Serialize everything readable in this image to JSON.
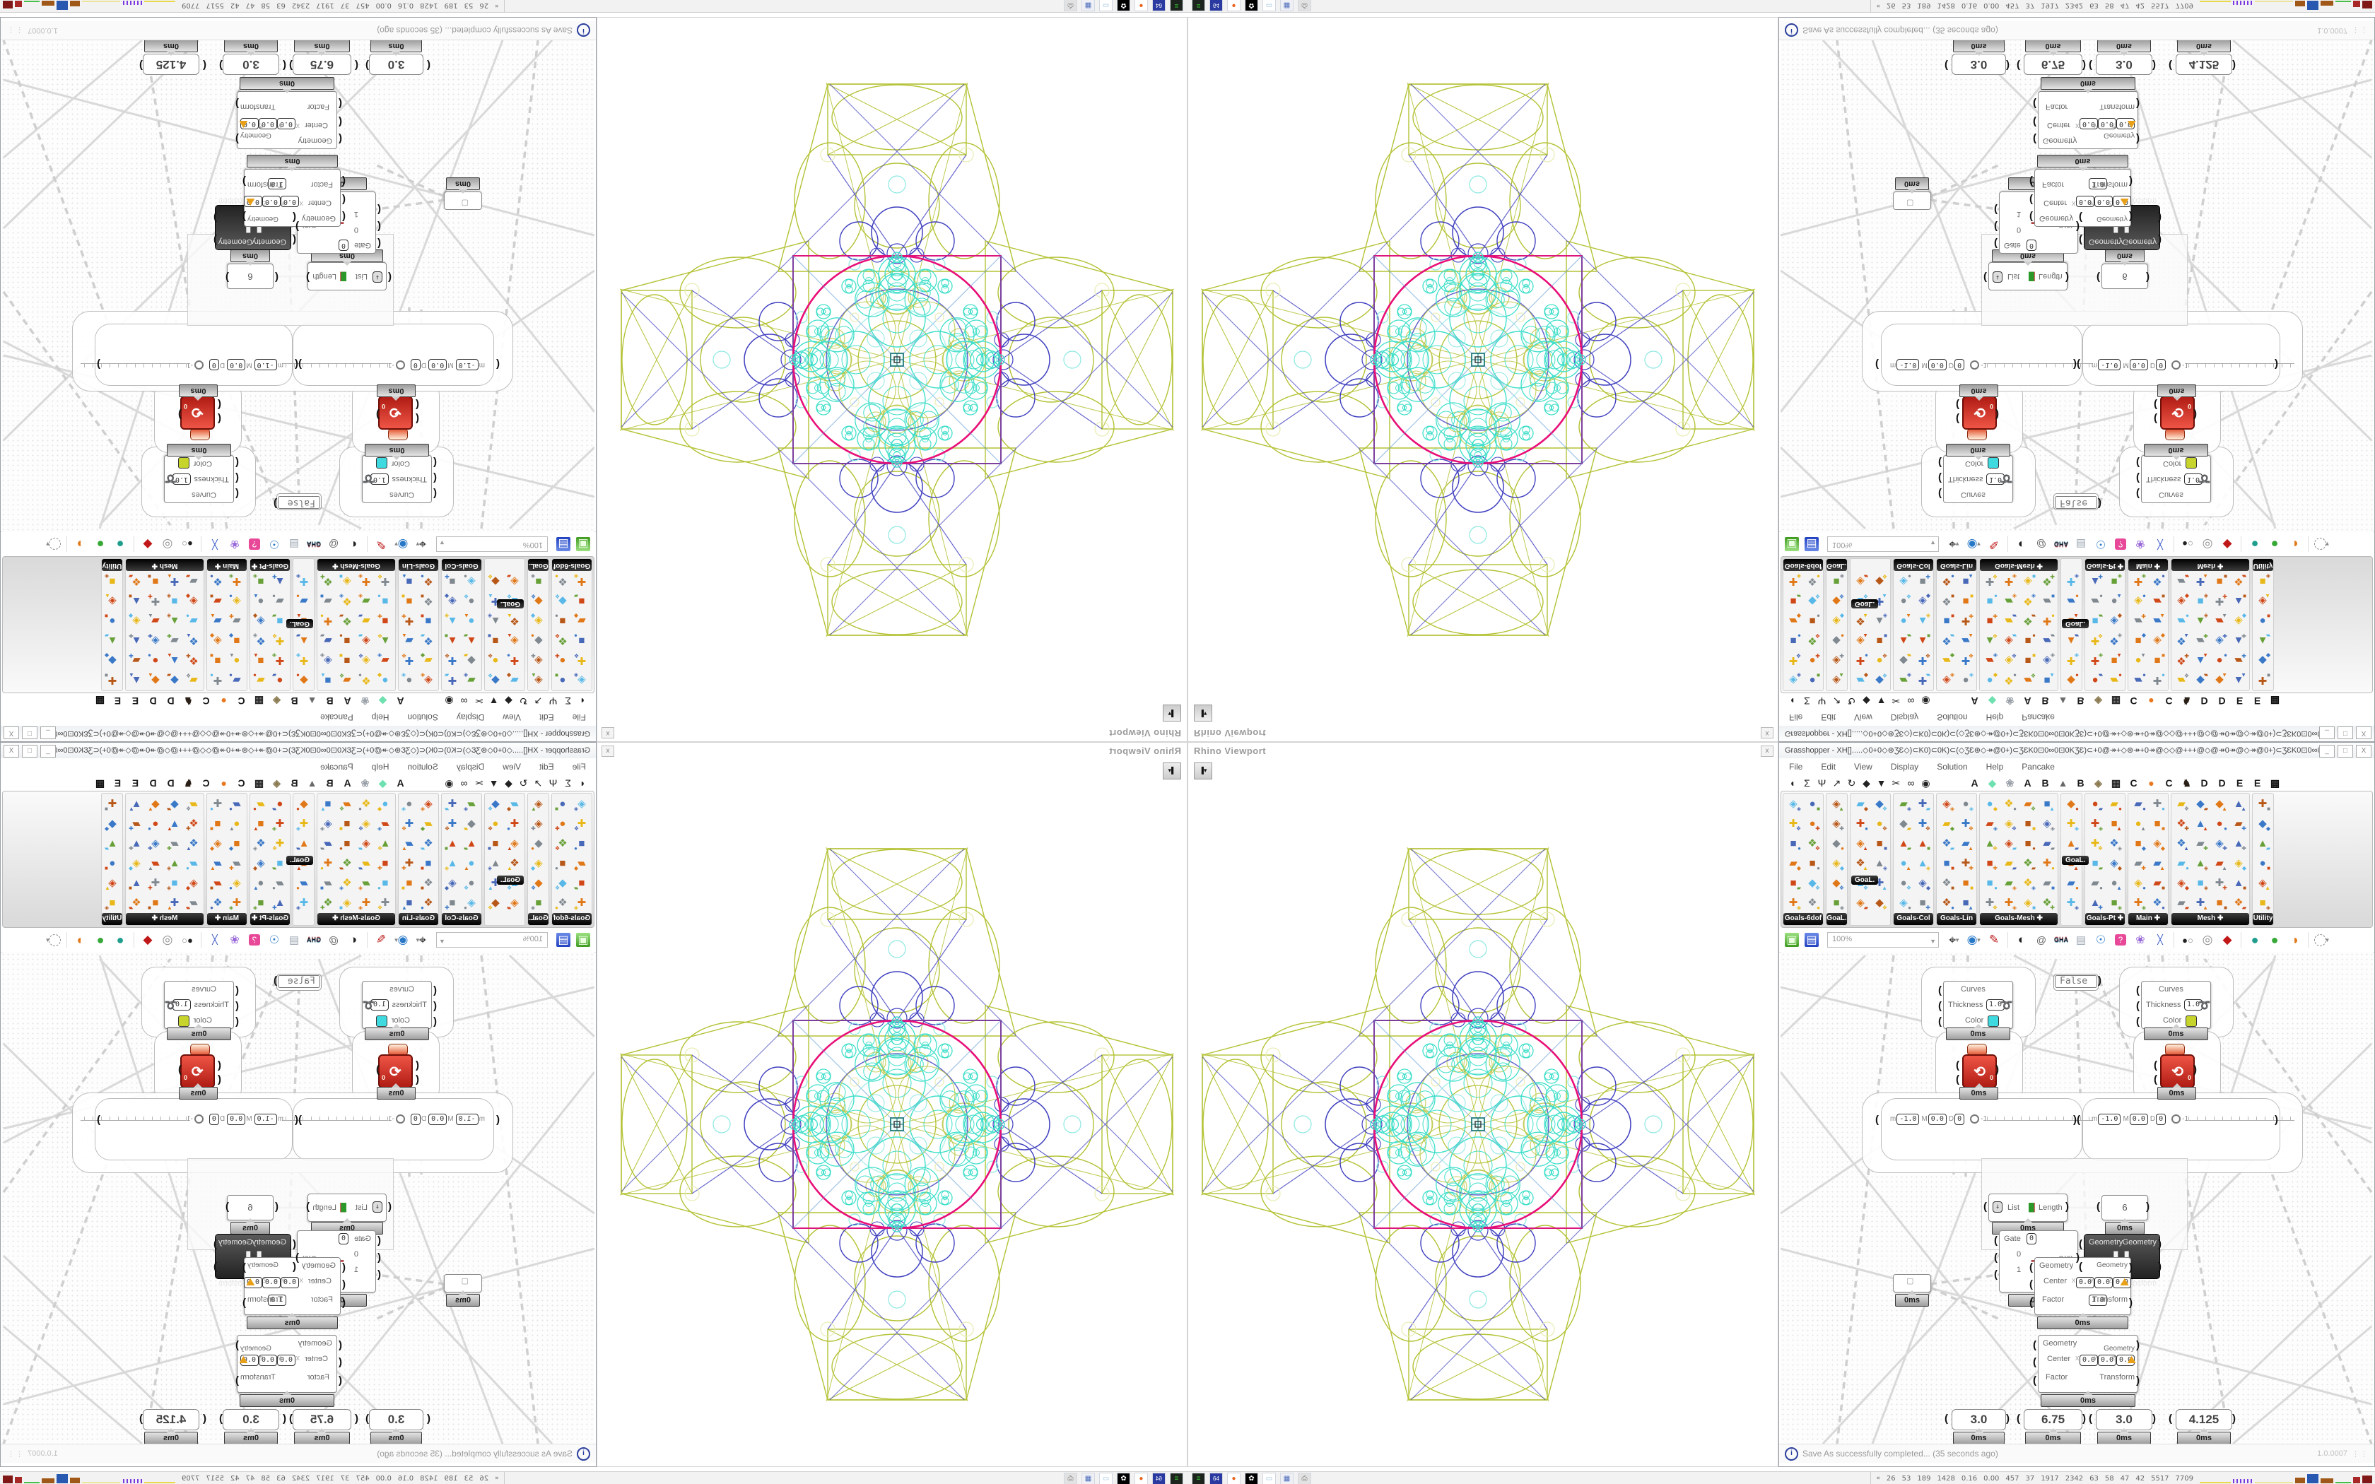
{
  "viewport": {
    "title": "Rhino Viewport",
    "close_label": "x",
    "colors": {
      "olive": "#b4c235",
      "blue": "#4040c0",
      "cyan": "#3fdfca",
      "light_cyan": "#8ce8e2",
      "magenta": "#e80f78",
      "purple": "#7d3f9e",
      "steel": "#4f8fd0",
      "pale_yellow": "#e9edb4",
      "center_dark": "#0a6a6a"
    }
  },
  "grasshopper": {
    "title": "Grasshopper - XH[].....◇0+0◇⊛ƷƐ◇)⊂K0)⊂0K)⊂(◇ƷƐ⊛◇↠@0+)⊂ƷƐK0⊡0∞0⊡0KƷƐ)⊂+0@↠+◇⊛↠+0↠@◇◇@+++@◇@↠0↠@◇↠@0+)⊂ƷƐK0⊡0∞0...",
    "window_buttons": [
      "_",
      "□",
      "X"
    ],
    "menus": [
      "File",
      "Edit",
      "View",
      "Display",
      "Solution",
      "Help",
      "Pancake"
    ],
    "tab_glyphs": [
      "◖",
      "Σ",
      "Ψ",
      "↗",
      "↻",
      "◆",
      "▼",
      "✂",
      "∞",
      "◉"
    ],
    "plugin_tabs": [
      [
        "A",
        "#1a1a1a"
      ],
      [
        "◆",
        "#6fe0b0"
      ],
      [
        "❀",
        "#9aa0a8"
      ],
      [
        "A",
        "#1a1a1a"
      ],
      [
        "B",
        "#1a1a1a"
      ],
      [
        "▲",
        "#6a6a6a"
      ],
      [
        "B",
        "#1a1a1a"
      ],
      [
        "◈",
        "#8a7a50"
      ],
      [
        "▦",
        "#2a2a2a"
      ],
      [
        "C",
        "#1a1a1a"
      ],
      [
        "●",
        "#e87820"
      ],
      [
        "C",
        "#1a1a1a"
      ],
      [
        "♞",
        "#2a2018"
      ],
      [
        "D",
        "#1a1a1a"
      ],
      [
        "D",
        "#1a1a1a"
      ],
      [
        "E",
        "#1a1a1a"
      ],
      [
        "E",
        "#1a1a1a"
      ],
      [
        "▩",
        "#111111"
      ]
    ],
    "palette_groups": [
      {
        "label": "Goals-6dof",
        "cols": 2
      },
      {
        "label": "GoaL.",
        "cols": 1
      },
      {
        "label": "",
        "cols": 2,
        "chip": "GoaL.",
        "chip_row": 4
      },
      {
        "label": "Goals-Col",
        "cols": 2
      },
      {
        "label": "Goals-Lin",
        "cols": 2
      },
      {
        "label": "Goals-Mesh",
        "cols": 4,
        "arrow": true
      },
      {
        "label": "",
        "cols": 1,
        "chip": "GoaL.",
        "chip_row": 3
      },
      {
        "label": "Goals-Pt",
        "cols": 2,
        "arrow": true
      },
      {
        "label": "Main",
        "cols": 2,
        "arrow": true
      },
      {
        "label": "Mesh",
        "cols": 4,
        "arrow": true
      },
      {
        "label": "Utility",
        "cols": 1
      }
    ],
    "toolbar": [
      {
        "name": "open-file-button",
        "kind": "folder"
      },
      {
        "name": "save-button",
        "kind": "floppy"
      },
      {
        "name": "zoom-level-select",
        "kind": "zoom"
      },
      {
        "name": "zoom-extents-button",
        "kind": "target",
        "dd": true
      },
      {
        "name": "preview-eye-button",
        "kind": "eye",
        "dd": true
      },
      {
        "name": "sketch-pen-button",
        "kind": "pen"
      },
      {
        "name": "sep"
      },
      {
        "name": "cluster-button",
        "kind": "dark"
      },
      {
        "name": "internalise-button",
        "kind": "doc"
      },
      {
        "name": "gha-installer-button",
        "kind": "gha"
      },
      {
        "name": "export-quick-image-button",
        "kind": "doc2"
      },
      {
        "name": "find-button",
        "kind": "mag"
      },
      {
        "name": "package-manager-button",
        "kind": "box"
      },
      {
        "name": "remote-panel-button",
        "kind": "balloon"
      },
      {
        "name": "wire-display-button",
        "kind": "shuffle"
      },
      {
        "name": "sep"
      },
      {
        "name": "camera-button",
        "kind": "camera"
      },
      {
        "name": "rings-button",
        "kind": "rings"
      },
      {
        "name": "gem-button",
        "kind": "gem"
      },
      {
        "name": "sep"
      },
      {
        "name": "preview-wireframe-button",
        "kind": "sphere1"
      },
      {
        "name": "preview-shaded-button",
        "kind": "sphere2"
      },
      {
        "name": "preview-custom-button",
        "kind": "sphere3"
      },
      {
        "name": "sep"
      },
      {
        "name": "selection-set-button",
        "kind": "dashed",
        "dd": true
      }
    ],
    "zoom_level": "100%",
    "status": {
      "message": "Save As successfully completed... (35 seconds ago)",
      "version": "1.0.0007",
      "info_glyph": "i"
    }
  },
  "canvas": {
    "badge": "0ms",
    "false_label": "False",
    "curves_panels": [
      {
        "rows": [
          "Curves",
          "Thickness",
          "Color"
        ],
        "thickness": "1.0",
        "color": "#3fd9e0"
      },
      {
        "rows": [
          "Curves",
          "Thickness",
          "Color"
        ],
        "thickness": "1.0",
        "color": "#c6d42c"
      }
    ],
    "solver_zero": "0",
    "sliders": [
      {
        "fields": [
          [
            "m",
            "-1.0"
          ],
          [
            "M",
            "0.0"
          ],
          [
            "D",
            "0"
          ]
        ],
        "value_label": "-1"
      },
      {
        "fields": [
          [
            "m",
            "-1.0"
          ],
          [
            "M",
            "0.0"
          ],
          [
            "D",
            "0"
          ]
        ],
        "value_label": "-1"
      }
    ],
    "list_length": {
      "input": "List",
      "output": "Length"
    },
    "panel_six": "6",
    "stream_filter": {
      "gate": "Gate",
      "gate_value": "0",
      "inputs": [
        "0",
        "1"
      ],
      "output": "S(0)"
    },
    "orient": {
      "inputs": [
        "Geometry",
        "Plane"
      ],
      "outputs": [
        "Geometry",
        "Transform"
      ],
      "glyph": "❚❚"
    },
    "scales": [
      {
        "left": [
          "Geometry",
          "Center",
          "Factor"
        ],
        "right": [
          "Geometry",
          "Transform"
        ],
        "axes": [
          "X",
          "Y",
          "Z"
        ],
        "xyz": [
          "0.0",
          "0.0",
          "0.0"
        ],
        "factor": "1.0"
      },
      {
        "left": [
          "Geometry",
          "Center",
          "Factor"
        ],
        "right": [
          "Geometry",
          "Transform"
        ],
        "axes": [
          "X",
          "Y",
          "Z"
        ],
        "xyz": [
          "0.0",
          "0.0",
          "0.0"
        ],
        "factor": ""
      }
    ],
    "value_panels": [
      "3.0",
      "6.75",
      "3.0",
      "4.125"
    ]
  },
  "taskbar": {
    "quicklaunch": [
      {
        "name": "system-monitor-icon",
        "bg": "#1d241d",
        "glyph": "≡",
        "fg": "#35c335"
      },
      {
        "name": "app-64-icon",
        "bg": "#2a3aa0",
        "glyph": "64",
        "fg": "#ffffff"
      },
      {
        "name": "firefox-icon",
        "bg": "#ffffff",
        "glyph": "●",
        "fg": "#e8641e"
      },
      {
        "name": "rhino-icon",
        "bg": "#000000",
        "glyph": "✿",
        "fg": "#ffffff"
      },
      {
        "name": "notepad-icon",
        "bg": "#ffffff",
        "glyph": "▭",
        "fg": "#9cc0dc"
      },
      {
        "name": "calculator-icon",
        "bg": "#eef0f6",
        "glyph": "▦",
        "fg": "#4868b8"
      },
      {
        "name": "printer-icon",
        "bg": "#e2e2e2",
        "glyph": "⎙",
        "fg": "#777777"
      }
    ],
    "tray_collapse": "«",
    "tray_numbers": [
      "26",
      "53",
      "189",
      "1428",
      "0.16",
      "0.00",
      "457",
      "37",
      "1917",
      "2342",
      "63",
      "58",
      "47",
      "42",
      "5517",
      "7709"
    ],
    "sparklines": [
      {
        "type": "line",
        "color": "#e8d84a",
        "w": 44,
        "h": 2
      },
      {
        "type": "dots",
        "color": "#7a3ae0",
        "w": 28,
        "h": 6
      },
      {
        "type": "line",
        "color": "#ece49a",
        "w": 54,
        "h": 2
      },
      {
        "type": "bar",
        "color": "#a05818",
        "w": 14,
        "h": 8
      },
      {
        "type": "bar",
        "color": "#2858b0",
        "w": 16,
        "h": 13
      },
      {
        "type": "bar",
        "color": "#a05818",
        "w": 18,
        "h": 7
      },
      {
        "type": "line",
        "color": "#48c048",
        "w": 22,
        "h": 2
      },
      {
        "type": "bar",
        "color": "#a82828",
        "w": 10,
        "h": 9
      },
      {
        "type": "bar",
        "color": "#801818",
        "w": 14,
        "h": 11
      }
    ]
  }
}
